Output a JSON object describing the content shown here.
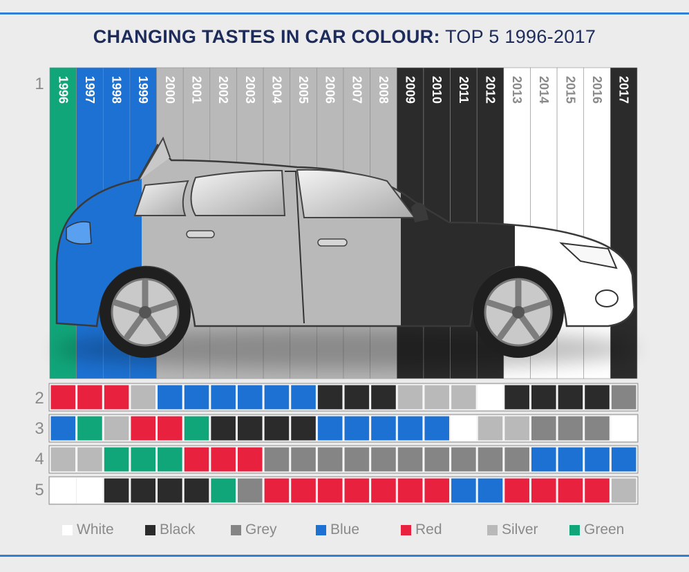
{
  "title": {
    "bold": "CHANGING TASTES IN CAR COLOUR:",
    "regular": " TOP 5 1996-2017"
  },
  "ranks": [
    "1",
    "2",
    "3",
    "4",
    "5"
  ],
  "colors": {
    "White": "#ffffff",
    "Black": "#2b2b2b",
    "Grey": "#858585",
    "Blue": "#1c71d2",
    "Red": "#e8213f",
    "Silver": "#b9b9b9",
    "Green": "#11a57a",
    "accent_rule": "#2f7fd4",
    "title": "#1d2c5a"
  },
  "legend": [
    {
      "label": "White",
      "color": "White"
    },
    {
      "label": "Black",
      "color": "Black"
    },
    {
      "label": "Grey",
      "color": "Grey"
    },
    {
      "label": "Blue",
      "color": "Blue"
    },
    {
      "label": "Red",
      "color": "Red"
    },
    {
      "label": "Silver",
      "color": "Silver"
    },
    {
      "label": "Green",
      "color": "Green"
    }
  ],
  "chart_data": {
    "type": "table",
    "title": "CHANGING TASTES IN CAR COLOUR: TOP 5 1996-2017",
    "categories": [
      "1996",
      "1997",
      "1998",
      "1999",
      "2000",
      "2001",
      "2002",
      "2003",
      "2004",
      "2005",
      "2006",
      "2007",
      "2008",
      "2009",
      "2010",
      "2011",
      "2012",
      "2013",
      "2014",
      "2015",
      "2016",
      "2017"
    ],
    "series": [
      {
        "name": "1",
        "values": [
          "Green",
          "Blue",
          "Blue",
          "Blue",
          "Silver",
          "Silver",
          "Silver",
          "Silver",
          "Silver",
          "Silver",
          "Silver",
          "Silver",
          "Silver",
          "Black",
          "Black",
          "Black",
          "Black",
          "White",
          "White",
          "White",
          "White",
          "Black"
        ]
      },
      {
        "name": "2",
        "values": [
          "Red",
          "Red",
          "Red",
          "Silver",
          "Blue",
          "Blue",
          "Blue",
          "Blue",
          "Blue",
          "Blue",
          "Black",
          "Black",
          "Black",
          "Silver",
          "Silver",
          "Silver",
          "White",
          "Black",
          "Black",
          "Black",
          "Black",
          "Grey"
        ]
      },
      {
        "name": "3",
        "values": [
          "Blue",
          "Green",
          "Silver",
          "Red",
          "Red",
          "Green",
          "Black",
          "Black",
          "Black",
          "Black",
          "Blue",
          "Blue",
          "Blue",
          "Blue",
          "Blue",
          "White",
          "Silver",
          "Silver",
          "Grey",
          "Grey",
          "Grey",
          "White"
        ]
      },
      {
        "name": "4",
        "values": [
          "Silver",
          "Silver",
          "Green",
          "Green",
          "Green",
          "Red",
          "Red",
          "Red",
          "Grey",
          "Grey",
          "Grey",
          "Grey",
          "Grey",
          "Grey",
          "Grey",
          "Grey",
          "Grey",
          "Grey",
          "Blue",
          "Blue",
          "Blue",
          "Blue"
        ]
      },
      {
        "name": "5",
        "values": [
          "White",
          "White",
          "Black",
          "Black",
          "Black",
          "Black",
          "Green",
          "Grey",
          "Red",
          "Red",
          "Red",
          "Red",
          "Red",
          "Red",
          "Red",
          "Blue",
          "Blue",
          "Red",
          "Red",
          "Red",
          "Red",
          "Silver"
        ]
      }
    ],
    "legend_placement": "bottom"
  }
}
